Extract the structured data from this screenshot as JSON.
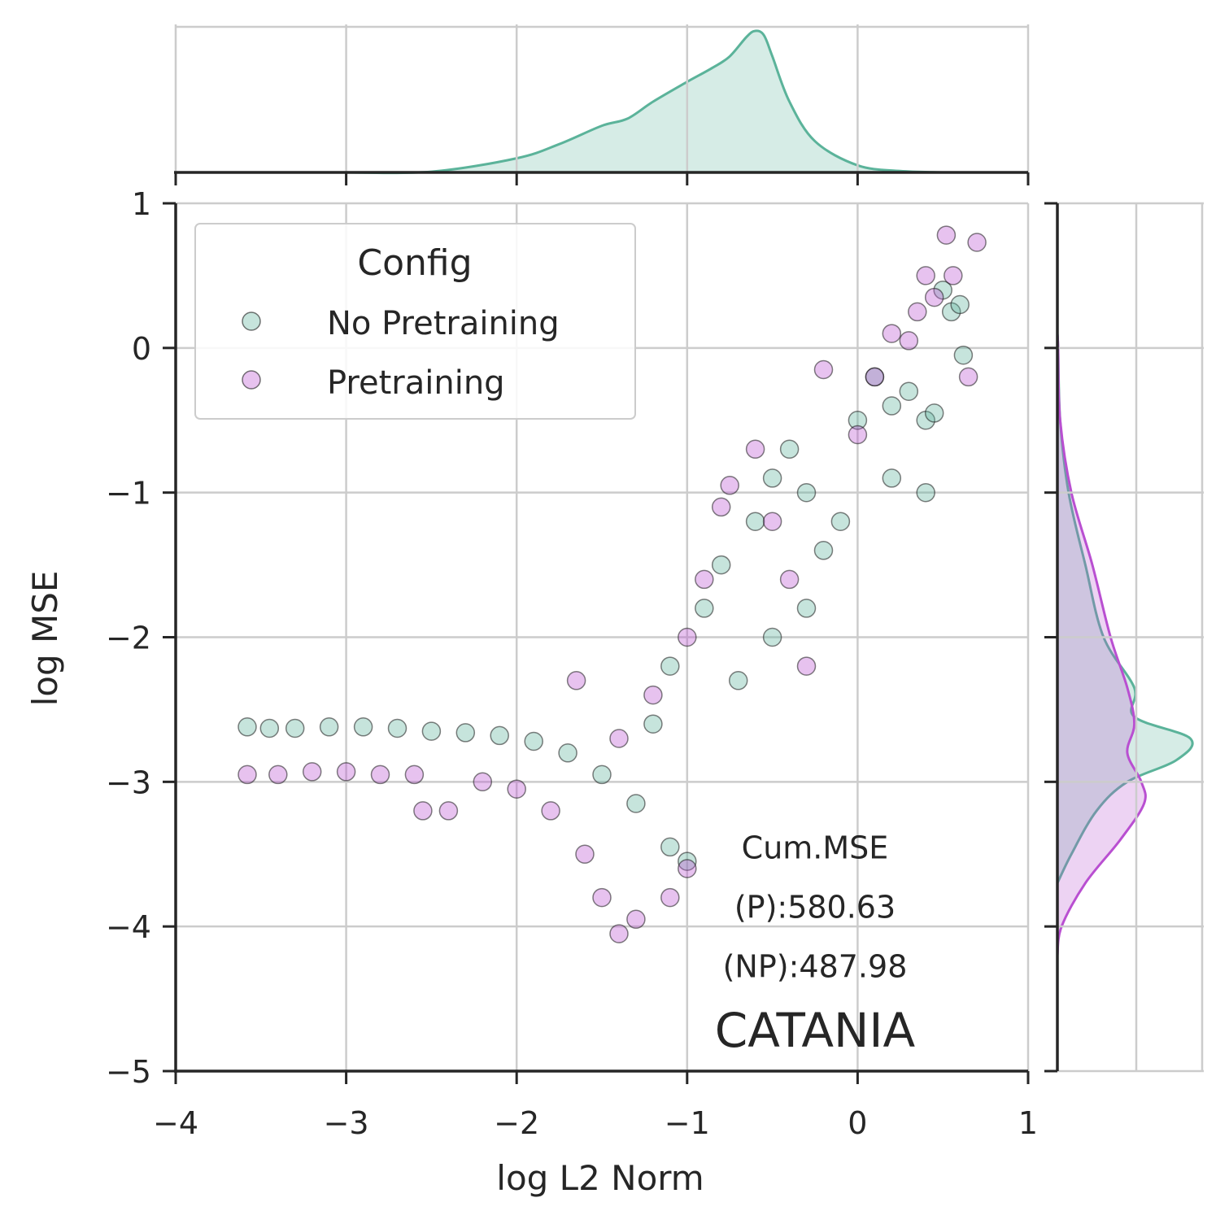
{
  "chart_data": {
    "type": "scatter",
    "title": "",
    "xlabel": "log L2 Norm",
    "ylabel": "log MSE",
    "xlim": [
      -4,
      1
    ],
    "ylim": [
      -5,
      1
    ],
    "x_ticks": [
      -4,
      -3,
      -2,
      -1,
      0,
      1
    ],
    "y_ticks": [
      1,
      0,
      -1,
      -2,
      -3,
      -4,
      -5
    ],
    "x_tick_labels": [
      "−4",
      "−3",
      "−2",
      "−1",
      "0",
      "1"
    ],
    "y_tick_labels": [
      "1",
      "0",
      "−1",
      "−2",
      "−3",
      "−4",
      "−5"
    ],
    "grid": true,
    "legend": {
      "title": "Config",
      "placement": "top-left",
      "entries": [
        "No Pretraining",
        "Pretraining"
      ]
    },
    "series": [
      {
        "name": "No Pretraining",
        "color": "#5bb39a",
        "description_points": [
          [
            -3.58,
            -2.62
          ],
          [
            -3.45,
            -2.63
          ],
          [
            -3.3,
            -2.63
          ],
          [
            -3.1,
            -2.62
          ],
          [
            -2.9,
            -2.62
          ],
          [
            -2.7,
            -2.63
          ],
          [
            -2.5,
            -2.65
          ],
          [
            -2.3,
            -2.66
          ],
          [
            -2.1,
            -2.68
          ],
          [
            -1.9,
            -2.72
          ],
          [
            -1.7,
            -2.8
          ],
          [
            -1.5,
            -2.95
          ],
          [
            -1.3,
            -3.15
          ],
          [
            -1.1,
            -3.45
          ],
          [
            -1.0,
            -3.55
          ],
          [
            -1.2,
            -2.6
          ],
          [
            -1.1,
            -2.2
          ],
          [
            -0.9,
            -1.8
          ],
          [
            -0.8,
            -1.5
          ],
          [
            -0.6,
            -1.2
          ],
          [
            -0.5,
            -0.9
          ],
          [
            -0.4,
            -0.7
          ],
          [
            -0.3,
            -1.0
          ],
          [
            -0.2,
            -1.4
          ],
          [
            -0.1,
            -1.2
          ],
          [
            0.0,
            -0.5
          ],
          [
            0.1,
            -0.2
          ],
          [
            0.2,
            -0.4
          ],
          [
            0.3,
            -0.3
          ],
          [
            0.4,
            -0.5
          ],
          [
            0.45,
            -0.45
          ],
          [
            0.5,
            0.4
          ],
          [
            0.55,
            0.25
          ],
          [
            0.6,
            0.3
          ],
          [
            0.62,
            -0.05
          ],
          [
            -0.7,
            -2.3
          ],
          [
            -0.5,
            -2.0
          ],
          [
            -0.3,
            -1.8
          ],
          [
            0.2,
            -0.9
          ],
          [
            0.4,
            -1.0
          ]
        ]
      },
      {
        "name": "Pretraining",
        "color": "#b94fd1",
        "description_points": [
          [
            -3.58,
            -2.95
          ],
          [
            -3.4,
            -2.95
          ],
          [
            -3.2,
            -2.93
          ],
          [
            -3.0,
            -2.93
          ],
          [
            -2.8,
            -2.95
          ],
          [
            -2.6,
            -2.95
          ],
          [
            -2.55,
            -3.2
          ],
          [
            -2.4,
            -3.2
          ],
          [
            -2.2,
            -3.0
          ],
          [
            -2.0,
            -3.05
          ],
          [
            -1.8,
            -3.2
          ],
          [
            -1.6,
            -3.5
          ],
          [
            -1.5,
            -3.8
          ],
          [
            -1.4,
            -4.05
          ],
          [
            -1.3,
            -3.95
          ],
          [
            -1.1,
            -3.8
          ],
          [
            -1.0,
            -3.6
          ],
          [
            -1.65,
            -2.3
          ],
          [
            -1.4,
            -2.7
          ],
          [
            -1.2,
            -2.4
          ],
          [
            -1.0,
            -2.0
          ],
          [
            -0.9,
            -1.6
          ],
          [
            -0.8,
            -1.1
          ],
          [
            -0.75,
            -0.95
          ],
          [
            -0.6,
            -0.7
          ],
          [
            -0.5,
            -1.2
          ],
          [
            -0.4,
            -1.6
          ],
          [
            -0.2,
            -0.15
          ],
          [
            0.0,
            -0.6
          ],
          [
            0.1,
            -0.2
          ],
          [
            0.2,
            0.1
          ],
          [
            0.3,
            0.05
          ],
          [
            0.35,
            0.25
          ],
          [
            0.4,
            0.5
          ],
          [
            0.45,
            0.35
          ],
          [
            0.52,
            0.78
          ],
          [
            0.56,
            0.5
          ],
          [
            0.65,
            -0.2
          ],
          [
            0.7,
            0.73
          ],
          [
            -0.3,
            -2.2
          ]
        ]
      }
    ],
    "marginal_x": {
      "series": "No Pretraining",
      "x": [
        -3.0,
        -2.5,
        -2.0,
        -1.75,
        -1.5,
        -1.35,
        -1.2,
        -1.0,
        -0.85,
        -0.75,
        -0.65,
        -0.6,
        -0.55,
        -0.5,
        -0.4,
        -0.25,
        0.0,
        0.25,
        0.5
      ],
      "density": [
        0.0,
        0.005,
        0.1,
        0.2,
        0.33,
        0.38,
        0.5,
        0.64,
        0.74,
        0.82,
        0.96,
        1.0,
        0.97,
        0.82,
        0.5,
        0.22,
        0.05,
        0.01,
        0.0
      ]
    },
    "marginal_y": {
      "series": [
        {
          "name": "No Pretraining",
          "y": [
            0.1,
            0.0,
            -0.5,
            -1.0,
            -1.5,
            -2.0,
            -2.35,
            -2.55,
            -2.7,
            -2.85,
            -3.0,
            -3.2,
            -3.5,
            -3.7
          ],
          "density": [
            0.0,
            0.005,
            0.02,
            0.08,
            0.2,
            0.33,
            0.55,
            0.55,
            0.95,
            0.85,
            0.5,
            0.28,
            0.1,
            0.0
          ]
        },
        {
          "name": "Pretraining",
          "y": [
            0.1,
            0.0,
            -0.5,
            -1.0,
            -1.5,
            -2.0,
            -2.35,
            -2.6,
            -2.8,
            -3.0,
            -3.15,
            -3.4,
            -3.7,
            -4.0,
            -4.2
          ],
          "density": [
            0.0,
            0.005,
            0.02,
            0.1,
            0.25,
            0.38,
            0.5,
            0.55,
            0.5,
            0.6,
            0.62,
            0.45,
            0.2,
            0.03,
            0.0
          ]
        }
      ]
    },
    "annotation": {
      "lines": [
        "Cum.MSE",
        "(P):580.63",
        "(NP):487.98"
      ],
      "name": "CATANIA",
      "anchor_x": -0.25,
      "line_y": [
        -3.53,
        -3.94,
        -4.35
      ],
      "name_y": -4.83
    }
  }
}
